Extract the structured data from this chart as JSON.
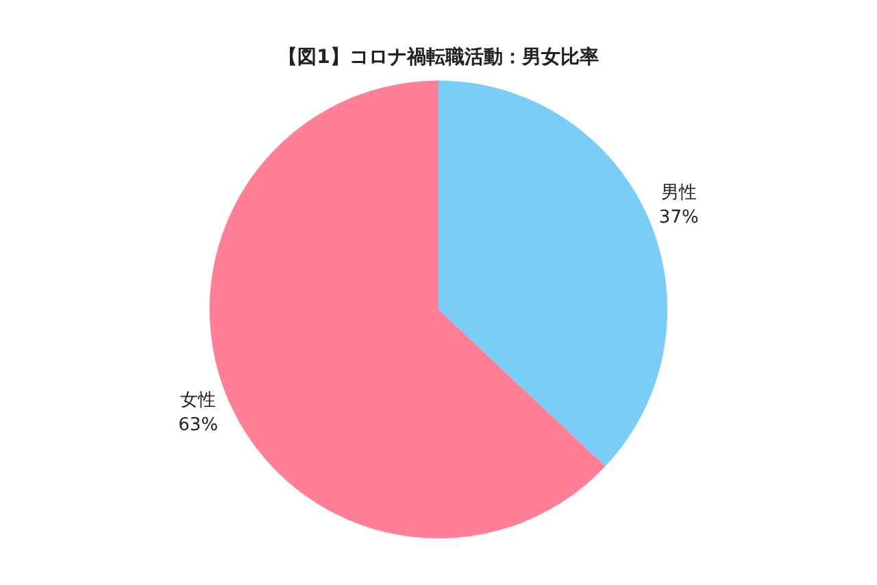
{
  "chart_data": {
    "type": "pie",
    "title": "【図1】コロナ禍転職活動：男女比率",
    "categories": [
      "男性",
      "女性"
    ],
    "values": [
      37,
      63
    ],
    "colors": [
      "#7acdf6",
      "#ff7f96"
    ],
    "value_labels": [
      "37%",
      "63%"
    ],
    "legend": false
  }
}
